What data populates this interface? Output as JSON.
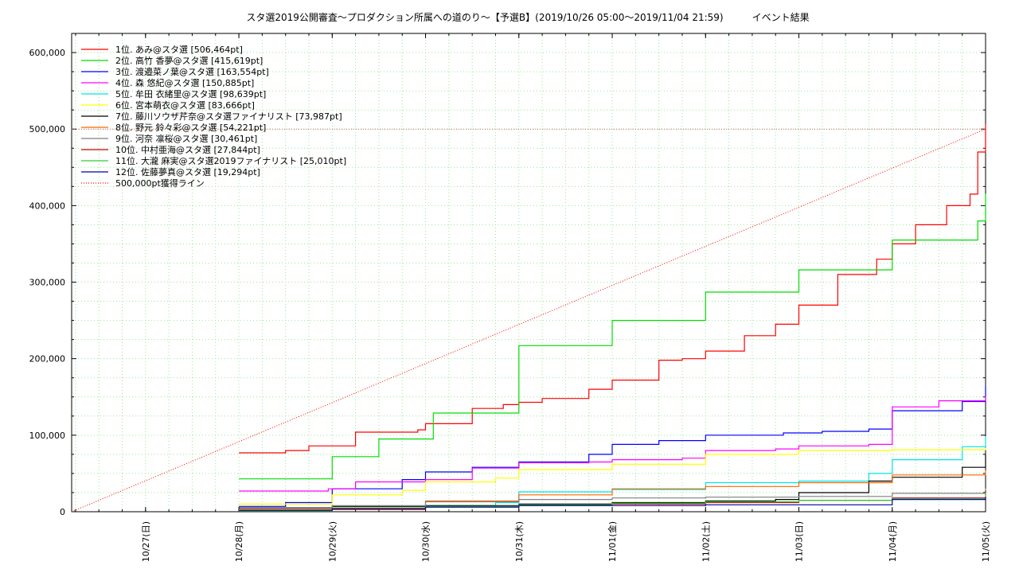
{
  "chart_data": {
    "type": "line",
    "title": "スタ選2019公開審査～プロダクション所属への道のり～【予選B】(2019/10/26 05:00～2019/11/04 21:59)　　　イベント結果",
    "xlabel": "",
    "ylabel": "",
    "x_range": [
      "2019-10-26 05:00",
      "2019-11-05 00:00"
    ],
    "ylim": [
      0,
      625000
    ],
    "y_ticks": [
      0,
      100000,
      200000,
      300000,
      400000,
      500000,
      600000
    ],
    "y_tick_labels": [
      "0",
      "100,000",
      "200,000",
      "300,000",
      "400,000",
      "500,000",
      "600,000"
    ],
    "x_ticks": [
      "2019-10-27",
      "2019-10-28",
      "2019-10-29",
      "2019-10-30",
      "2019-10-31",
      "2019-11-01",
      "2019-11-02",
      "2019-11-03",
      "2019-11-04",
      "2019-11-05"
    ],
    "x_tick_labels": [
      "10/27(日)",
      "10/28(月)",
      "10/29(火)",
      "10/30(水)",
      "10/31(木)",
      "11/01(金)",
      "11/02(土)",
      "11/03(日)",
      "11/04(月)",
      "11/05(火)"
    ],
    "grid": true,
    "legend_position": "top-left",
    "series": [
      {
        "name": "1位. あみ@スタ選 [506,464pt]",
        "color": "#ff0000",
        "x": [
          "2019-10-28 00:00",
          "2019-10-28 12:00",
          "2019-10-28 18:00",
          "2019-10-29 06:00",
          "2019-10-29 22:00",
          "2019-10-30 00:00",
          "2019-10-30 12:00",
          "2019-10-30 20:00",
          "2019-10-31 00:00",
          "2019-10-31 06:00",
          "2019-10-31 18:00",
          "2019-11-01 00:00",
          "2019-11-01 12:00",
          "2019-11-01 18:00",
          "2019-11-02 00:00",
          "2019-11-02 10:00",
          "2019-11-02 18:00",
          "2019-11-03 00:00",
          "2019-11-03 10:00",
          "2019-11-03 20:00",
          "2019-11-04 00:00",
          "2019-11-04 06:00",
          "2019-11-04 14:00",
          "2019-11-04 20:00",
          "2019-11-04 22:00",
          "2019-11-05 00:00"
        ],
        "y": [
          77000,
          80000,
          86000,
          104000,
          107000,
          115000,
          135000,
          140000,
          143000,
          148000,
          160000,
          172000,
          198000,
          200000,
          210000,
          230000,
          245000,
          270000,
          310000,
          330000,
          350000,
          375000,
          400000,
          415000,
          470000,
          506464
        ]
      },
      {
        "name": "2位. 高竹 香夢@スタ選 [415,619pt]",
        "color": "#00dd00",
        "x": [
          "2019-10-28 00:00",
          "2019-10-28 18:00",
          "2019-10-29 00:00",
          "2019-10-29 12:00",
          "2019-10-29 23:00",
          "2019-10-30 02:00",
          "2019-10-30 20:00",
          "2019-10-31 00:00",
          "2019-10-31 23:00",
          "2019-11-01 00:00",
          "2019-11-01 23:00",
          "2019-11-02 00:00",
          "2019-11-02 23:00",
          "2019-11-03 00:00",
          "2019-11-03 20:00",
          "2019-11-04 00:00",
          "2019-11-04 20:00",
          "2019-11-04 22:00",
          "2019-11-05 00:00"
        ],
        "y": [
          43000,
          43000,
          72000,
          95000,
          95000,
          129000,
          129000,
          217000,
          217000,
          250000,
          250000,
          287000,
          287000,
          316000,
          316000,
          355000,
          355000,
          380000,
          415619
        ]
      },
      {
        "name": "3位. 渡邉菜ノ葉@スタ選 [163,554pt]",
        "color": "#0000ff",
        "x": [
          "2019-10-28 00:00",
          "2019-10-28 12:00",
          "2019-10-29 00:00",
          "2019-10-29 18:00",
          "2019-10-30 00:00",
          "2019-10-30 12:00",
          "2019-10-31 00:00",
          "2019-10-31 18:00",
          "2019-11-01 00:00",
          "2019-11-01 12:00",
          "2019-11-02 00:00",
          "2019-11-02 20:00",
          "2019-11-03 06:00",
          "2019-11-03 18:00",
          "2019-11-04 00:00",
          "2019-11-04 18:00",
          "2019-11-05 00:00"
        ],
        "y": [
          7000,
          12000,
          30000,
          42000,
          52000,
          58000,
          65000,
          75000,
          88000,
          93000,
          100000,
          103000,
          105000,
          108000,
          132000,
          144000,
          163554
        ]
      },
      {
        "name": "4位. 森 悠紀@スタ選 [150,885pt]",
        "color": "#ff00ff",
        "x": [
          "2019-10-28 00:00",
          "2019-10-28 23:00",
          "2019-10-29 06:00",
          "2019-10-30 00:00",
          "2019-10-30 12:00",
          "2019-10-31 00:00",
          "2019-10-31 18:00",
          "2019-11-01 00:00",
          "2019-11-01 18:00",
          "2019-11-02 00:00",
          "2019-11-02 18:00",
          "2019-11-03 00:00",
          "2019-11-03 18:00",
          "2019-11-04 00:00",
          "2019-11-04 12:00",
          "2019-11-05 00:00"
        ],
        "y": [
          27000,
          30000,
          39000,
          42000,
          57000,
          64000,
          65000,
          68000,
          70000,
          80000,
          82000,
          86000,
          88000,
          137000,
          145000,
          150885
        ]
      },
      {
        "name": "5位. 牟田 衣緒里@スタ選 [98,639pt]",
        "color": "#00e5e5",
        "x": [
          "2019-10-28 00:00",
          "2019-10-29 00:00",
          "2019-10-30 00:00",
          "2019-10-30 18:00",
          "2019-10-31 00:00",
          "2019-11-01 00:00",
          "2019-11-02 00:00",
          "2019-11-03 00:00",
          "2019-11-03 18:00",
          "2019-11-04 00:00",
          "2019-11-04 18:00",
          "2019-11-05 00:00"
        ],
        "y": [
          3000,
          5000,
          8000,
          12000,
          26000,
          29000,
          38000,
          40000,
          50000,
          68000,
          85000,
          98639
        ]
      },
      {
        "name": "6位. 宮本萌衣@スタ選 [83,666pt]",
        "color": "#ffff00",
        "x": [
          "2019-10-28 00:00",
          "2019-10-29 00:00",
          "2019-10-29 18:00",
          "2019-10-30 00:00",
          "2019-10-30 18:00",
          "2019-10-31 00:00",
          "2019-11-01 00:00",
          "2019-11-02 00:00",
          "2019-11-03 00:00",
          "2019-11-04 00:00",
          "2019-11-05 00:00"
        ],
        "y": [
          10000,
          22000,
          28000,
          39000,
          44000,
          55000,
          62000,
          75000,
          80000,
          81000,
          83666
        ]
      },
      {
        "name": "7位. 藤川ソウザ芹奈@スタ選ファイナリスト [73,987pt]",
        "color": "#000000",
        "x": [
          "2019-10-28 00:00",
          "2019-10-29 00:00",
          "2019-10-30 00:00",
          "2019-10-31 00:00",
          "2019-11-01 00:00",
          "2019-11-02 00:00",
          "2019-11-02 18:00",
          "2019-11-03 00:00",
          "2019-11-03 18:00",
          "2019-11-04 00:00",
          "2019-11-04 18:00",
          "2019-11-05 00:00"
        ],
        "y": [
          5000,
          7000,
          8000,
          10000,
          12000,
          14000,
          16000,
          25000,
          40000,
          45000,
          58000,
          73987
        ]
      },
      {
        "name": "8位. 野元 鈴々彩@スタ選 [54,221pt]",
        "color": "#ff6600",
        "x": [
          "2019-10-28 00:00",
          "2019-10-29 00:00",
          "2019-10-30 00:00",
          "2019-10-31 00:00",
          "2019-11-01 00:00",
          "2019-11-02 00:00",
          "2019-11-03 00:00",
          "2019-11-04 00:00",
          "2019-11-05 00:00"
        ],
        "y": [
          3000,
          5000,
          14000,
          22000,
          30000,
          33000,
          38000,
          48000,
          54221
        ]
      },
      {
        "name": "9位. 河奈 凛桜@スタ選 [30,461pt]",
        "color": "#808080",
        "x": [
          "2019-10-28 00:00",
          "2019-10-29 00:00",
          "2019-10-30 00:00",
          "2019-10-31 00:00",
          "2019-11-01 00:00",
          "2019-11-02 00:00",
          "2019-11-03 00:00",
          "2019-11-04 00:00",
          "2019-11-05 00:00"
        ],
        "y": [
          2000,
          8000,
          13000,
          16000,
          18000,
          19000,
          20000,
          24000,
          30461
        ]
      },
      {
        "name": "10位. 中村亜海@スタ選 [27,844pt]",
        "color": "#cc0000",
        "x": [
          "2019-10-28 00:00",
          "2019-10-29 00:00",
          "2019-10-30 00:00",
          "2019-10-31 00:00",
          "2019-11-01 00:00",
          "2019-11-02 00:00",
          "2019-11-03 00:00",
          "2019-11-04 00:00",
          "2019-11-05 00:00"
        ],
        "y": [
          1000,
          3000,
          6000,
          8000,
          10000,
          12000,
          15000,
          18000,
          27844
        ]
      },
      {
        "name": "11位. 大瀧 麻実@スタ選2019ファイナリスト [25,010pt]",
        "color": "#33cc33",
        "x": [
          "2019-10-28 00:00",
          "2019-10-29 00:00",
          "2019-10-30 00:00",
          "2019-10-31 00:00",
          "2019-11-01 00:00",
          "2019-11-02 00:00",
          "2019-11-03 00:00",
          "2019-11-04 00:00",
          "2019-11-05 00:00"
        ],
        "y": [
          1000,
          5000,
          7000,
          9000,
          11000,
          13000,
          15000,
          17000,
          25010
        ]
      },
      {
        "name": "12位. 佐藤夢真@スタ選 [19,294pt]",
        "color": "#0000aa",
        "x": [
          "2019-10-28 00:00",
          "2019-10-29 00:00",
          "2019-10-30 00:00",
          "2019-10-31 00:00",
          "2019-11-01 00:00",
          "2019-11-02 00:00",
          "2019-11-03 00:00",
          "2019-11-04 00:00",
          "2019-11-05 00:00"
        ],
        "y": [
          2000,
          4000,
          6000,
          8000,
          8000,
          9000,
          9000,
          16000,
          19294
        ]
      }
    ],
    "reference_line": {
      "name": "500,000pt獲得ライン",
      "color": "#ff0000",
      "style": "dotted",
      "x": [
        "2019-10-26 05:00",
        "2019-11-05 00:00"
      ],
      "y": [
        0,
        500000
      ]
    }
  }
}
